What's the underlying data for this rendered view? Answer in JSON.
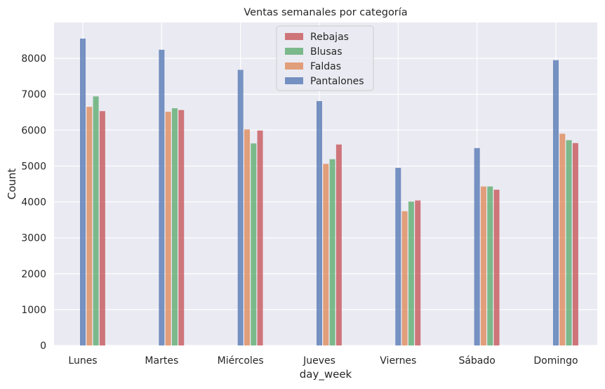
{
  "chart_data": {
    "type": "bar",
    "title": "Ventas semanales por categoría",
    "xlabel": "day_week",
    "ylabel": "Count",
    "ylim": [
      0,
      9000
    ],
    "yticks": [
      0,
      1000,
      2000,
      3000,
      4000,
      5000,
      6000,
      7000,
      8000
    ],
    "categories": [
      "Lunes",
      "Martes",
      "Miércoles",
      "Jueves",
      "Viernes",
      "Sábado",
      "Domingo"
    ],
    "series": [
      {
        "name": "Pantalones",
        "color": "#4c72b0",
        "values": [
          8550,
          8240,
          7680,
          6810,
          4950,
          5500,
          7950
        ]
      },
      {
        "name": "Faldas",
        "color": "#dd8452",
        "values": [
          6650,
          6510,
          6020,
          5060,
          3740,
          4430,
          5900
        ]
      },
      {
        "name": "Blusas",
        "color": "#55a868",
        "values": [
          6940,
          6610,
          5630,
          5190,
          4010,
          4430,
          5720
        ]
      },
      {
        "name": "Rebajas",
        "color": "#c44e52",
        "values": [
          6530,
          6560,
          5990,
          5600,
          4040,
          4340,
          5640
        ]
      }
    ],
    "legend_order": [
      "Rebajas",
      "Blusas",
      "Faldas",
      "Pantalones"
    ],
    "legend_position": "top-center",
    "grid": true,
    "background": "#eaeaf2"
  }
}
